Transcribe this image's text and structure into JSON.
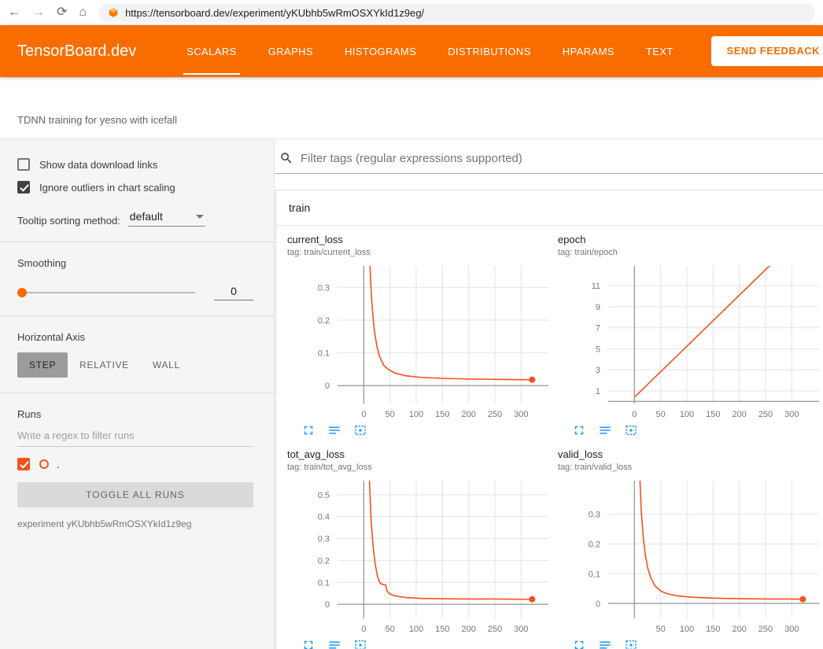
{
  "browser": {
    "back_glyph": "←",
    "forward_glyph": "→",
    "reload_glyph": "⟳",
    "home_glyph": "⌂",
    "url": "https://tensorboard.dev/experiment/yKUbhb5wRmOSXYkId1z9eg/"
  },
  "header": {
    "brand": "TensorBoard.dev",
    "tabs": [
      {
        "label": "SCALARS",
        "active": true
      },
      {
        "label": "GRAPHS",
        "active": false
      },
      {
        "label": "HISTOGRAMS",
        "active": false
      },
      {
        "label": "DISTRIBUTIONS",
        "active": false
      },
      {
        "label": "HPARAMS",
        "active": false
      },
      {
        "label": "TEXT",
        "active": false
      }
    ],
    "feedback_button": "SEND FEEDBACK"
  },
  "subheader": {
    "experiment_title": "TDNN training for yesno with icefall"
  },
  "sidebar": {
    "show_download_label": "Show data download links",
    "ignore_outliers_label": "Ignore outliers in chart scaling",
    "tooltip_sorting_label": "Tooltip sorting method:",
    "tooltip_sorting_value": "default",
    "smoothing_label": "Smoothing",
    "smoothing_value": "0",
    "horizontal_axis_label": "Horizontal Axis",
    "axis_buttons": [
      "STEP",
      "RELATIVE",
      "WALL"
    ],
    "runs_label": "Runs",
    "runs_filter_placeholder": "Write a regex to filter runs",
    "run_name": ".",
    "toggle_all_label": "TOGGLE ALL RUNS",
    "experiment_caption": "experiment yKUbhb5wRmOSXYkId1z9eg"
  },
  "main": {
    "filter_placeholder": "Filter tags (regular expressions supported)",
    "group_title": "train"
  },
  "colors": {
    "accent": "#f96d00",
    "line": "#f4511e",
    "blue": "#2196f3",
    "checkbox_dark": "#424242"
  },
  "chart_data": [
    {
      "type": "line",
      "title": "current_loss",
      "tag": "tag: train/current_loss",
      "xlim": [
        -50,
        352
      ],
      "ylim": [
        -0.055,
        0.366
      ],
      "xticks": [
        0,
        50,
        100,
        150,
        200,
        250,
        300
      ],
      "yticks": [
        0,
        0.1,
        0.2,
        0.3
      ],
      "end_marker": true,
      "series": [
        {
          "name": ".",
          "x": [
            4,
            7,
            10,
            13,
            16,
            20,
            25,
            30,
            38,
            48,
            60,
            80,
            110,
            150,
            200,
            250,
            300,
            321
          ],
          "y": [
            1.2,
            0.7,
            0.45,
            0.32,
            0.24,
            0.17,
            0.12,
            0.09,
            0.062,
            0.048,
            0.038,
            0.03,
            0.025,
            0.022,
            0.02,
            0.019,
            0.018,
            0.018
          ]
        }
      ]
    },
    {
      "type": "line",
      "title": "epoch",
      "tag": "tag: train/epoch",
      "xlim": [
        -50,
        352
      ],
      "ylim": [
        -0.2,
        12.87
      ],
      "xticks": [
        0,
        50,
        100,
        150,
        200,
        250,
        300
      ],
      "yticks": [
        1,
        3,
        5,
        7,
        9,
        11
      ],
      "end_marker": false,
      "series": [
        {
          "name": ".",
          "x": [
            0,
            320
          ],
          "y": [
            0.4,
            15.9
          ]
        }
      ]
    },
    {
      "type": "line",
      "title": "tot_avg_loss",
      "tag": "tag: train/tot_avg_loss",
      "xlim": [
        -50,
        352
      ],
      "ylim": [
        -0.064,
        0.564
      ],
      "xticks": [
        0,
        50,
        100,
        150,
        200,
        250,
        300
      ],
      "yticks": [
        0,
        0.1,
        0.2,
        0.3,
        0.4,
        0.5
      ],
      "end_marker": true,
      "series": [
        {
          "name": ".",
          "x": [
            5,
            8,
            11,
            14,
            18,
            22,
            26,
            30,
            34,
            38,
            42,
            44,
            48,
            55,
            65,
            80,
            110,
            150,
            200,
            250,
            300,
            321
          ],
          "y": [
            1.3,
            0.85,
            0.55,
            0.38,
            0.26,
            0.18,
            0.13,
            0.1,
            0.092,
            0.09,
            0.088,
            0.062,
            0.05,
            0.042,
            0.036,
            0.031,
            0.027,
            0.025,
            0.024,
            0.024,
            0.023,
            0.023
          ]
        }
      ]
    },
    {
      "type": "line",
      "title": "valid_loss",
      "tag": "tag: train/valid_loss",
      "xlim": [
        -50,
        352
      ],
      "ylim": [
        -0.05,
        0.413
      ],
      "xticks": [
        50,
        100,
        150,
        200,
        250,
        300
      ],
      "yticks": [
        0,
        0.1,
        0.2,
        0.3
      ],
      "end_marker": true,
      "series": [
        {
          "name": ".",
          "x": [
            4,
            7,
            10,
            13,
            17,
            21,
            26,
            32,
            40,
            50,
            62,
            80,
            110,
            150,
            200,
            250,
            300,
            321
          ],
          "y": [
            1.0,
            0.66,
            0.44,
            0.31,
            0.22,
            0.16,
            0.115,
            0.082,
            0.058,
            0.042,
            0.033,
            0.026,
            0.021,
            0.018,
            0.016,
            0.015,
            0.015,
            0.014
          ]
        }
      ]
    }
  ]
}
